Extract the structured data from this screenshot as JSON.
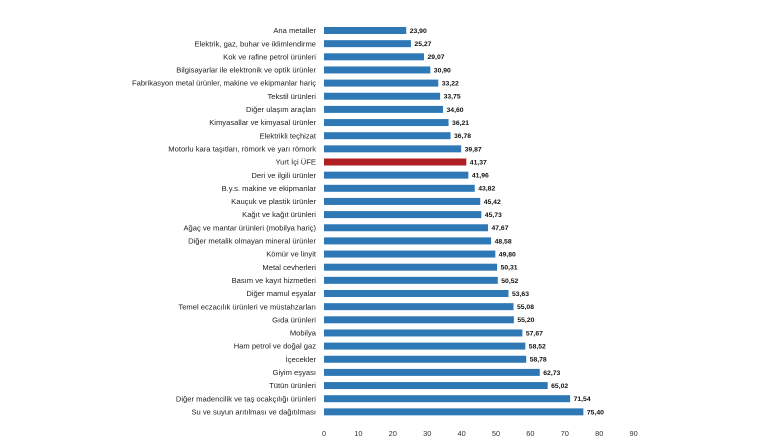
{
  "chart_data": {
    "type": "bar",
    "orientation": "horizontal",
    "title": "",
    "xlabel": "",
    "ylabel": "",
    "xlim": [
      0,
      90
    ],
    "x_ticks": [
      "0",
      "10",
      "20",
      "30",
      "40",
      "50",
      "60",
      "70",
      "80",
      "90"
    ],
    "grid": false,
    "legend": "none",
    "colors": {
      "default": "#2e79b5",
      "highlight": "#b01f24"
    },
    "highlight_category": "Yurt İçi ÜFE",
    "categories": [
      "Ana metaller",
      "Elektrik, gaz, buhar ve iklimlendirme",
      "Kok ve rafine petrol ürünleri",
      "Bilgisayarlar ile elektronik ve optik ürünler",
      "Fabrikasyon metal ürünler, makine ve ekipmanlar hariç",
      "Tekstil ürünleri",
      "Diğer ulaşım araçları",
      "Kimyasallar ve kimyasal ürünler",
      "Elektrikli teçhizat",
      "Motorlu kara taşıtları, römork ve yarı römork",
      "Yurt İçi ÜFE",
      "Deri ve ilgili ürünler",
      "B.y.s. makine ve ekipmanlar",
      "Kauçuk ve plastik ürünler",
      "Kağıt ve kağıt ürünleri",
      "Ağaç ve mantar ürünleri (mobilya hariç)",
      "Diğer metalik olmayan mineral ürünler",
      "Kömür ve linyit",
      "Metal cevherleri",
      "Basım ve kayıt hizmetleri",
      "Diğer mamul eşyalar",
      "Temel eczacılık ürünleri ve müstahzarları",
      "Gıda ürünleri",
      "Mobilya",
      "Ham petrol ve doğal gaz",
      "İçecekler",
      "Giyim eşyası",
      "Tütün ürünleri",
      "Diğer madencilik ve taş ocakçılığı ürünleri",
      "Su ve suyun arıtılması ve dağıtılması"
    ],
    "values": [
      23.9,
      25.27,
      29.07,
      30.9,
      33.22,
      33.75,
      34.6,
      36.21,
      36.78,
      39.87,
      41.37,
      41.96,
      43.82,
      45.42,
      45.73,
      47.67,
      48.58,
      49.8,
      50.31,
      50.52,
      53.63,
      55.08,
      55.2,
      57.67,
      58.52,
      58.78,
      62.73,
      65.02,
      71.54,
      75.4
    ],
    "value_labels": [
      "23,90",
      "25,27",
      "29,07",
      "30,90",
      "33,22",
      "33,75",
      "34,60",
      "36,21",
      "36,78",
      "39,87",
      "41,37",
      "41,96",
      "43,82",
      "45,42",
      "45,73",
      "47,67",
      "48,58",
      "49,80",
      "50,31",
      "50,52",
      "53,63",
      "55,08",
      "55,20",
      "57,67",
      "58,52",
      "58,78",
      "62,73",
      "65,02",
      "71,54",
      "75,40"
    ]
  }
}
